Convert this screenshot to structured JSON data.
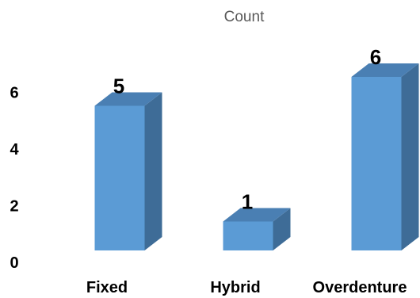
{
  "chart_data": {
    "type": "bar",
    "title": "Count",
    "categories": [
      "Fixed",
      "Hybrid",
      "Overdenture"
    ],
    "values": [
      5,
      1,
      6
    ],
    "data_labels": [
      "5",
      "1",
      "6"
    ],
    "yticks": [
      "0",
      "2",
      "4",
      "6"
    ],
    "ylim": [
      0,
      6.5
    ],
    "xlabel": "",
    "ylabel": "",
    "grid": false,
    "legend": "none",
    "style": "3d-column",
    "colors": {
      "front": "#5b9bd5",
      "side": "#3e6c97",
      "top": "#4a7fb3"
    }
  }
}
